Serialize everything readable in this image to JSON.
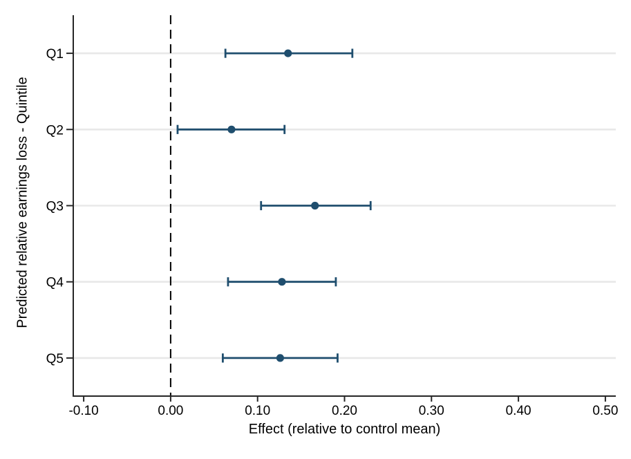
{
  "chart_data": {
    "type": "scatter",
    "subtype": "coefficient-plot-with-horizontal-ci",
    "title": "",
    "xlabel": "Effect (relative to control mean)",
    "ylabel": "Predicted relative earnings loss - Quintile",
    "categories": [
      "Q1",
      "Q2",
      "Q3",
      "Q4",
      "Q5"
    ],
    "points": {
      "estimate": [
        0.135,
        0.07,
        0.166,
        0.128,
        0.126
      ],
      "ci_low": [
        0.063,
        0.008,
        0.104,
        0.066,
        0.06
      ],
      "ci_high": [
        0.209,
        0.131,
        0.23,
        0.19,
        0.192
      ]
    },
    "x_ticks": [
      -0.1,
      0.0,
      0.1,
      0.2,
      0.3,
      0.4,
      0.5
    ],
    "x_tick_labels": [
      "-0.10",
      "0.00",
      "0.10",
      "0.20",
      "0.30",
      "0.40",
      "0.50"
    ],
    "xlim": [
      -0.112,
      0.512
    ],
    "reference_line_x": 0,
    "grid": "horizontal gridline at each category",
    "legend": "none",
    "colors": {
      "marker": "#1f4e6e",
      "ci": "#1f4e6e",
      "gridline": "#e8e8e8",
      "axis": "#262626",
      "reference_line": "#000000",
      "text": "#000000",
      "background": "#ffffff"
    }
  }
}
